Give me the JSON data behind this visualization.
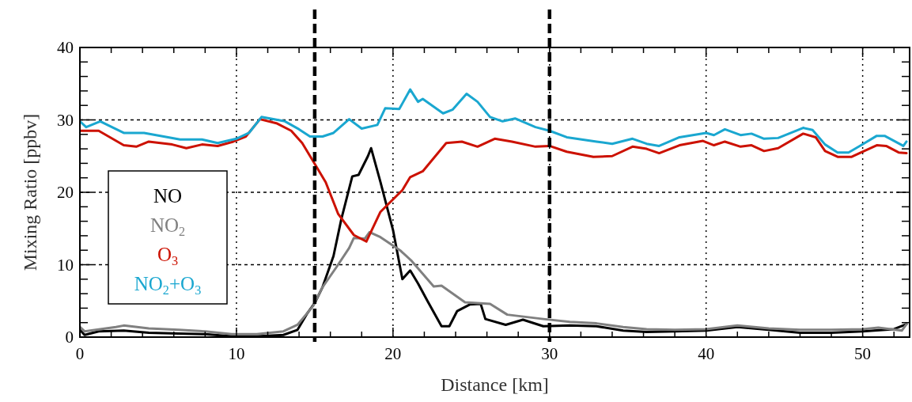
{
  "chart_data": {
    "type": "line",
    "xlabel": "Distance [km]",
    "ylabel": "Mixing Ratio [ppbv]",
    "xlim": [
      0,
      53
    ],
    "ylim": [
      0,
      40
    ],
    "xticks": [
      0,
      {
        "value": 2,
        "label": null
      },
      {
        "value": 4,
        "label": null
      },
      {
        "value": 6,
        "label": null
      },
      {
        "value": 8,
        "label": null
      },
      10,
      {
        "value": 12,
        "label": null
      },
      {
        "value": 14,
        "label": null
      },
      {
        "value": 16,
        "label": null
      },
      {
        "value": 18,
        "label": null
      },
      20,
      {
        "value": 22,
        "label": null
      },
      {
        "value": 24,
        "label": null
      },
      {
        "value": 26,
        "label": null
      },
      {
        "value": 28,
        "label": null
      },
      30,
      {
        "value": 32,
        "label": null
      },
      {
        "value": 34,
        "label": null
      },
      {
        "value": 36,
        "label": null
      },
      {
        "value": 38,
        "label": null
      },
      40,
      {
        "value": 42,
        "label": null
      },
      {
        "value": 44,
        "label": null
      },
      {
        "value": 46,
        "label": null
      },
      {
        "value": 48,
        "label": null
      },
      50,
      {
        "value": 52,
        "label": null
      }
    ],
    "yticks": [
      0,
      {
        "value": 2,
        "label": null
      },
      {
        "value": 4,
        "label": null
      },
      {
        "value": 6,
        "label": null
      },
      {
        "value": 8,
        "label": null
      },
      10,
      {
        "value": 12,
        "label": null
      },
      {
        "value": 14,
        "label": null
      },
      {
        "value": 16,
        "label": null
      },
      {
        "value": 18,
        "label": null
      },
      20,
      {
        "value": 22,
        "label": null
      },
      {
        "value": 24,
        "label": null
      },
      {
        "value": 26,
        "label": null
      },
      {
        "value": 28,
        "label": null
      },
      30,
      {
        "value": 32,
        "label": null
      },
      {
        "value": 34,
        "label": null
      },
      {
        "value": 36,
        "label": null
      },
      {
        "value": 38,
        "label": null
      },
      40
    ],
    "grid": true,
    "legend": "left",
    "marker": "none",
    "line_style": "solid",
    "ref_lines": [
      {
        "axis": "x",
        "value": 15,
        "color": "#000000",
        "line_style": "dashed"
      },
      {
        "axis": "x",
        "value": 30,
        "color": "#000000",
        "line_style": "dashed"
      }
    ],
    "series": [
      {
        "name": "NO",
        "color": "#000000",
        "x": [
          0,
          0.3,
          1.2,
          2.8,
          4.4,
          6.3,
          8,
          9.7,
          11.3,
          13,
          13.9,
          14.5,
          15,
          15.5,
          16.2,
          16.7,
          17.4,
          17.8,
          18.4,
          18.6,
          19.2,
          20,
          20.6,
          21.1,
          21.6,
          22.2,
          23.1,
          23.6,
          24.1,
          24.9,
          25.6,
          25.9,
          27.2,
          28.3,
          29.6,
          31.3,
          33,
          34.7,
          36.2,
          38,
          40,
          42,
          44,
          46,
          48,
          50,
          52,
          52.8
        ],
        "values": [
          1.0,
          0.3,
          0.8,
          0.9,
          0.6,
          0.5,
          0.4,
          0.1,
          0.1,
          0.3,
          1.0,
          3.2,
          4.7,
          6.9,
          11.2,
          16.3,
          22.2,
          22.4,
          25,
          26.1,
          21.4,
          14.8,
          8,
          9.2,
          7.4,
          5.0,
          1.5,
          1.5,
          3.6,
          4.5,
          4.6,
          2.5,
          1.7,
          2.4,
          1.5,
          1.6,
          1.5,
          0.9,
          0.7,
          0.8,
          0.9,
          1.4,
          1.0,
          0.6,
          0.6,
          0.8,
          1.1,
          1.8
        ]
      },
      {
        "name": "NO$_{2}$",
        "color": "#808080",
        "x": [
          0,
          0.3,
          2.3,
          2.8,
          4.4,
          6.3,
          8,
          9.7,
          11.3,
          13,
          13.9,
          14.9,
          15.5,
          16.4,
          17.2,
          17.5,
          18.2,
          18.5,
          19.2,
          20.5,
          21.2,
          22.6,
          23.1,
          24.6,
          26.2,
          27.3,
          29.6,
          31.3,
          33,
          34.7,
          36.2,
          38,
          40,
          42,
          44,
          46,
          48,
          50,
          51,
          52.5,
          52.8
        ],
        "values": [
          1.4,
          0.8,
          1.4,
          1.6,
          1.2,
          1.0,
          0.8,
          0.4,
          0.4,
          0.8,
          1.7,
          4.3,
          6.9,
          9.7,
          12.3,
          13.7,
          13.6,
          14.5,
          13.8,
          11.9,
          10.5,
          7.0,
          7.1,
          4.8,
          4.6,
          3.1,
          2.5,
          2.1,
          1.9,
          1.4,
          1.1,
          1.0,
          1.1,
          1.6,
          1.2,
          1.0,
          1.0,
          1.1,
          1.3,
          0.9,
          1.8
        ]
      },
      {
        "name": "O$_{3}$",
        "color": "#cc1100",
        "x": [
          0,
          1.2,
          2.8,
          3.6,
          4.4,
          5.9,
          6.8,
          7.8,
          8.8,
          9.8,
          10.6,
          11.5,
          12.6,
          13.5,
          14.2,
          14.9,
          15.7,
          16.5,
          17.5,
          18.3,
          19.2,
          20.6,
          21.1,
          21.9,
          23.4,
          24.4,
          25.4,
          26.5,
          27.6,
          29.1,
          30,
          31.1,
          32.8,
          34,
          35.3,
          36.2,
          37,
          38.3,
          39.8,
          40.5,
          41.2,
          42.2,
          42.9,
          43.7,
          44.6,
          46.2,
          47,
          47.6,
          48.4,
          49.3,
          49.9,
          50.9,
          51.5,
          52.3,
          52.8
        ],
        "values": [
          28.5,
          28.5,
          26.5,
          26.3,
          27,
          26.6,
          26.1,
          26.6,
          26.4,
          27,
          27.7,
          30.1,
          29.5,
          28.5,
          26.8,
          24.3,
          21.4,
          17,
          14.1,
          13.2,
          17.3,
          20.3,
          22.1,
          22.9,
          26.8,
          27,
          26.3,
          27.4,
          27,
          26.3,
          26.4,
          25.6,
          24.9,
          25,
          26.3,
          26,
          25.4,
          26.5,
          27.1,
          26.5,
          27,
          26.3,
          26.5,
          25.7,
          26.1,
          28.1,
          27.6,
          25.7,
          24.9,
          24.9,
          25.5,
          26.5,
          26.4,
          25.5,
          25.4
        ]
      },
      {
        "name": "NO$_{2}$+O$_{3}$",
        "color": "#1aa7d0",
        "x": [
          0,
          0.4,
          1.3,
          2.8,
          4.1,
          6.4,
          7.8,
          8.8,
          10,
          10.8,
          11.6,
          13.1,
          14,
          14.7,
          15.5,
          16.2,
          17.2,
          18,
          19,
          19.5,
          20.4,
          21.1,
          21.6,
          21.9,
          23.2,
          23.8,
          24.7,
          25.4,
          26.2,
          27,
          27.8,
          29.1,
          30,
          31.1,
          33,
          34,
          35.3,
          36.2,
          37,
          38.3,
          40,
          40.5,
          41.2,
          42.2,
          42.9,
          43.7,
          44.6,
          46.2,
          46.8,
          47.6,
          48.4,
          49.1,
          49.9,
          50.9,
          51.4,
          52.6,
          52.8
        ],
        "values": [
          29.8,
          29,
          29.8,
          28.2,
          28.2,
          27.3,
          27.3,
          26.8,
          27.4,
          28.2,
          30.4,
          29.8,
          28.7,
          27.7,
          27.7,
          28.2,
          30.1,
          28.8,
          29.3,
          31.6,
          31.5,
          34.2,
          32.5,
          32.9,
          30.9,
          31.4,
          33.6,
          32.5,
          30.4,
          29.8,
          30.2,
          29,
          28.5,
          27.6,
          27,
          26.7,
          27.4,
          26.7,
          26.4,
          27.6,
          28.2,
          27.9,
          28.7,
          27.9,
          28.1,
          27.4,
          27.5,
          28.9,
          28.6,
          26.6,
          25.5,
          25.5,
          26.5,
          27.8,
          27.8,
          26.4,
          27
        ]
      }
    ]
  }
}
